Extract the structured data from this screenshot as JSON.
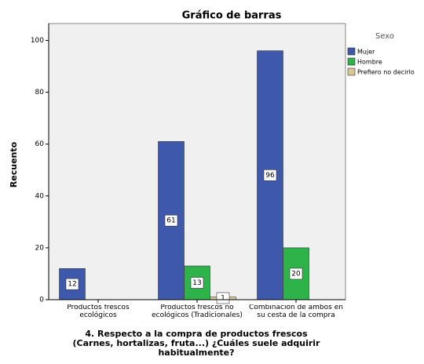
{
  "chart_data": {
    "type": "bar",
    "title": "Gráfico de barras",
    "x_label": "4. Respecto a la compra de productos frescos (Carnes, hortalizas, fruta...) ¿Cuáles suele adquirir habitualmente?",
    "y_label": "Recuento",
    "legend_title": "Sexo",
    "legend_position": "right",
    "categories": [
      "Productos frescos ecológicos",
      "Productos frescos no ecológicos (Tradicionales)",
      "Combinación de ambos en su cesta de la compra"
    ],
    "series": [
      {
        "name": "Mujer",
        "color": "#3e58ac",
        "values": [
          12,
          61,
          96
        ]
      },
      {
        "name": "Hombre",
        "color": "#2eb34a",
        "values": [
          null,
          13,
          20
        ]
      },
      {
        "name": "Prefiero no decirlo",
        "color": "#d6c795",
        "values": [
          null,
          1,
          null
        ]
      }
    ],
    "ylim": [
      0,
      106.5
    ],
    "yticks": [
      0,
      20,
      40,
      60,
      80,
      100
    ]
  }
}
